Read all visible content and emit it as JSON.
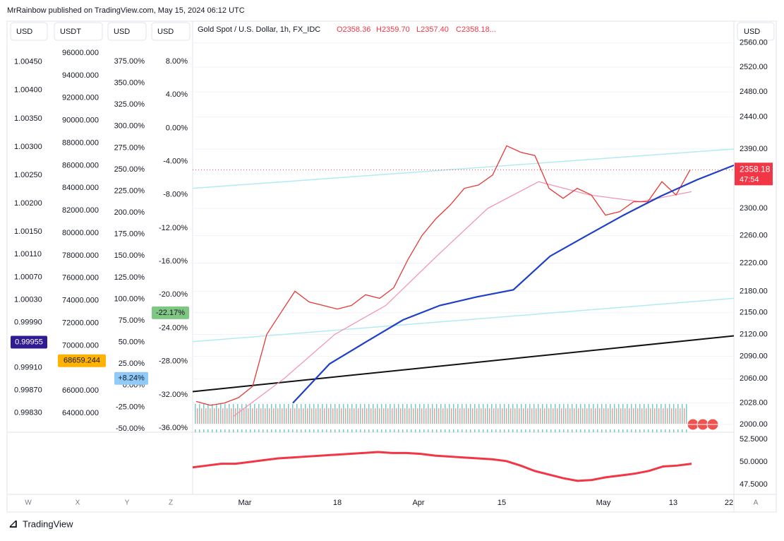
{
  "header": {
    "publisher": "MrRainbow published on TradingView.com, May 15, 2024 06:12 UTC"
  },
  "legend": {
    "symbol": "Gold Spot / U.S. Dollar, 1h, FX_IDC",
    "open": "O2358.36",
    "high": "H2359.70",
    "low": "L2357.40",
    "close": "C2358.18..."
  },
  "left_scales": [
    {
      "currency": "USD",
      "ylim": [
        0.99796,
        1.00522
      ],
      "align": "start",
      "ticks": [
        {
          "value": 1.0045,
          "label": "1.00450"
        },
        {
          "value": 1.004,
          "label": "1.00400"
        },
        {
          "value": 1.0035,
          "label": "1.00350"
        },
        {
          "value": 1.003,
          "label": "1.00300"
        },
        {
          "value": 1.0025,
          "label": "1.00250"
        },
        {
          "value": 1.002,
          "label": "1.00200"
        },
        {
          "value": 1.0015,
          "label": "1.00150"
        },
        {
          "value": 1.0011,
          "label": "1.00110"
        },
        {
          "value": 1.0007,
          "label": "1.00070"
        },
        {
          "value": 1.0003,
          "label": "1.00030"
        },
        {
          "value": 0.9999,
          "label": "0.99990"
        },
        {
          "value": 0.9991,
          "label": "0.99910"
        },
        {
          "value": 0.9987,
          "label": "0.99870"
        },
        {
          "value": 0.9983,
          "label": "0.99830"
        }
      ],
      "highlight": {
        "value": 0.99955,
        "label": "0.99955",
        "color": "#311b92",
        "text_color": "#ffffff"
      }
    },
    {
      "currency": "USDT",
      "ylim": [
        62306,
        98824
      ],
      "align": "start",
      "ticks": [
        {
          "value": 96000,
          "label": "96000.000"
        },
        {
          "value": 94000,
          "label": "94000.000"
        },
        {
          "value": 92000,
          "label": "92000.000"
        },
        {
          "value": 90000,
          "label": "90000.000"
        },
        {
          "value": 88000,
          "label": "88000.000"
        },
        {
          "value": 86000,
          "label": "86000.000"
        },
        {
          "value": 84000,
          "label": "84000.000"
        },
        {
          "value": 82000,
          "label": "82000.000"
        },
        {
          "value": 80000,
          "label": "80000.000"
        },
        {
          "value": 78000,
          "label": "78000.000"
        },
        {
          "value": 76000,
          "label": "76000.000"
        },
        {
          "value": 74000,
          "label": "74000.000"
        },
        {
          "value": 72000,
          "label": "72000.000"
        },
        {
          "value": 70000,
          "label": "70000.000"
        },
        {
          "value": 66000,
          "label": "66000.000"
        },
        {
          "value": 64000,
          "label": "64000.000"
        }
      ],
      "highlight": {
        "value": 68659.244,
        "label": "68659.244",
        "color": "#ffb300",
        "text_color": "#131722"
      }
    },
    {
      "currency": "USD",
      "ylim": [
        -54.1,
        421.6
      ],
      "align": "end",
      "ticks": [
        {
          "value": 375,
          "label": "375.00%"
        },
        {
          "value": 350,
          "label": "350.00%"
        },
        {
          "value": 325,
          "label": "325.00%"
        },
        {
          "value": 300,
          "label": "300.00%"
        },
        {
          "value": 275,
          "label": "275.00%"
        },
        {
          "value": 250,
          "label": "250.00%"
        },
        {
          "value": 225,
          "label": "225.00%"
        },
        {
          "value": 200,
          "label": "200.00%"
        },
        {
          "value": 175,
          "label": "175.00%"
        },
        {
          "value": 150,
          "label": "150.00%"
        },
        {
          "value": 125,
          "label": "125.00%"
        },
        {
          "value": 100,
          "label": "100.00%"
        },
        {
          "value": 75,
          "label": "75.00%"
        },
        {
          "value": 50,
          "label": "50.00%"
        },
        {
          "value": 25,
          "label": "25.00%"
        },
        {
          "value": 0,
          "label": "0.00%"
        },
        {
          "value": -25,
          "label": "-25.00%"
        },
        {
          "value": -50,
          "label": "-50.00%"
        }
      ],
      "highlight": {
        "value": 8.24,
        "label": "+8.24%",
        "color": "#90caf9",
        "text_color": "#131722"
      }
    },
    {
      "currency": "USD",
      "ylim": [
        -36.5,
        12.83
      ],
      "align": "end",
      "ticks": [
        {
          "value": 8,
          "label": "8.00%"
        },
        {
          "value": 4,
          "label": "4.00%"
        },
        {
          "value": 0,
          "label": "0.00%"
        },
        {
          "value": -4,
          "label": "-4.00%"
        },
        {
          "value": -8,
          "label": "-8.00%"
        },
        {
          "value": -12,
          "label": "-12.00%"
        },
        {
          "value": -16,
          "label": "-16.00%"
        },
        {
          "value": -20,
          "label": "-20.00%"
        },
        {
          "value": -24,
          "label": "-24.00%"
        },
        {
          "value": -28,
          "label": "-28.00%"
        },
        {
          "value": -32,
          "label": "-32.00%"
        },
        {
          "value": -36,
          "label": "-36.00%"
        }
      ],
      "highlight": {
        "value": -22.17,
        "label": "-22.17%",
        "color": "#81c784",
        "text_color": "#131722"
      }
    }
  ],
  "price_axis": {
    "currency": "USD",
    "log": true,
    "ylim": [
      1990,
      2596
    ],
    "ticks": [
      {
        "value": 2560,
        "label": "2560.00"
      },
      {
        "value": 2520,
        "label": "2520.00"
      },
      {
        "value": 2480,
        "label": "2480.00"
      },
      {
        "value": 2440,
        "label": "2440.00"
      },
      {
        "value": 2390,
        "label": "2390.00"
      },
      {
        "value": 2300,
        "label": "2300.00"
      },
      {
        "value": 2260,
        "label": "2260.00"
      },
      {
        "value": 2220,
        "label": "2220.00"
      },
      {
        "value": 2180,
        "label": "2180.00"
      },
      {
        "value": 2150,
        "label": "2150.00"
      },
      {
        "value": 2120,
        "label": "2120.00"
      },
      {
        "value": 2090,
        "label": "2090.00"
      },
      {
        "value": 2060,
        "label": "2060.00"
      },
      {
        "value": 2028,
        "label": "2028.00"
      },
      {
        "value": 2000,
        "label": "2000.00"
      }
    ],
    "last_price": {
      "value": 2358.18,
      "label": "2358.18",
      "color": "#f23645"
    },
    "countdown": "47:54"
  },
  "price_series": {
    "color": "#e53935",
    "values": [
      2030,
      2025,
      2028,
      2035,
      2050,
      2120,
      2150,
      2180,
      2165,
      2160,
      2155,
      2160,
      2175,
      2170,
      2185,
      2225,
      2260,
      2285,
      2305,
      2330,
      2335,
      2350,
      2395,
      2385,
      2380,
      2330,
      2315,
      2330,
      2320,
      2290,
      2295,
      2310,
      2310,
      2340,
      2320,
      2358.18
    ]
  },
  "ma_long": {
    "color": "#1e40c8",
    "values": [
      2028,
      2080,
      2110,
      2140,
      2160,
      2172,
      2182,
      2230,
      2260,
      2290,
      2318,
      2343,
      2365
    ]
  },
  "ma_short": {
    "color": "#f48fb1",
    "values": [
      2010,
      2060,
      2120,
      2160,
      2230,
      2300,
      2340,
      2320,
      2310,
      2325
    ]
  },
  "trendlines": [
    {
      "color": "#111111",
      "values": [
        2043,
        2118
      ]
    },
    {
      "color": "#b2ebf2",
      "values": [
        2330,
        2390
      ]
    },
    {
      "color": "#b2ebf2",
      "values": [
        2110,
        2170
      ]
    }
  ],
  "oscillator": {
    "color": "#f23645",
    "ylim": [
      46.4,
      53.3
    ],
    "ticks": [
      {
        "value": 52.5,
        "label": "52.5000"
      },
      {
        "value": 50,
        "label": "50.0000"
      },
      {
        "value": 47.5,
        "label": "47.5000"
      }
    ],
    "values": [
      49.4,
      49.6,
      49.8,
      49.8,
      50.0,
      50.2,
      50.4,
      50.5,
      50.6,
      50.7,
      50.8,
      50.9,
      51.0,
      51.1,
      51.0,
      51.0,
      50.9,
      50.7,
      50.6,
      50.5,
      50.4,
      50.3,
      50.1,
      49.6,
      49.0,
      48.6,
      48.2,
      47.9,
      48.0,
      48.3,
      48.5,
      48.7,
      49.0,
      49.5,
      49.6,
      49.8
    ]
  },
  "time_axis": {
    "labels": [
      "Mar",
      "18",
      "Apr",
      "15",
      "May",
      "13",
      "22"
    ]
  },
  "bottom_buttons": [
    "W",
    "X",
    "Y",
    "Z",
    "A"
  ],
  "footer": "TradingView"
}
